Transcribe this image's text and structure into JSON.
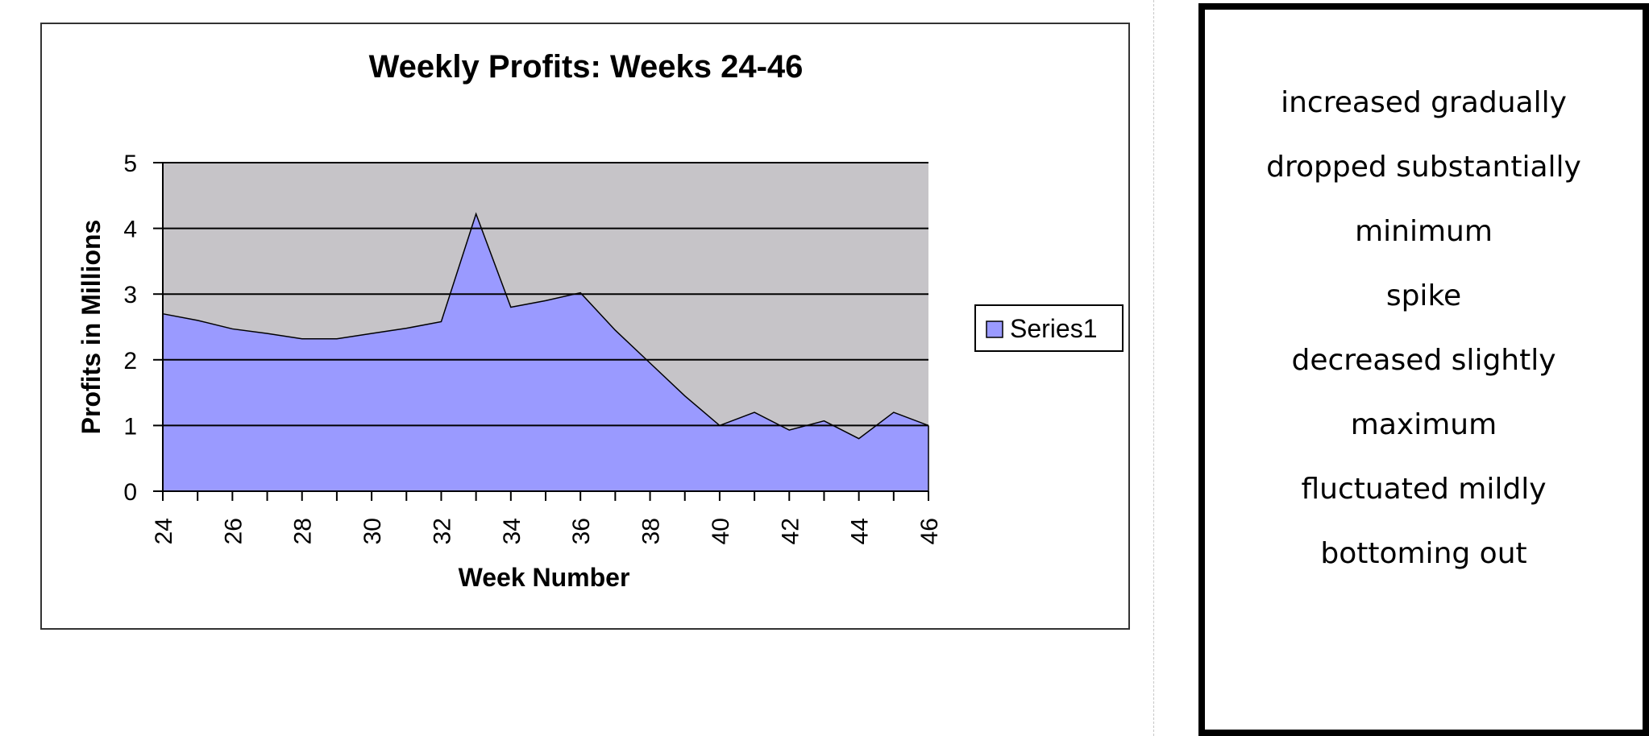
{
  "colors": {
    "plot_background": "#c6c4c8",
    "series_fill": "#9a9aff",
    "gridline": "#000000",
    "frame": "#333333"
  },
  "chart_data": {
    "type": "area",
    "title": "Weekly Profits: Weeks 24-46",
    "xlabel": "Week Number",
    "ylabel": "Profits in Millions",
    "x": [
      24,
      25,
      26,
      27,
      28,
      29,
      30,
      31,
      32,
      33,
      34,
      35,
      36,
      37,
      38,
      39,
      40,
      41,
      42,
      43,
      44,
      45,
      46
    ],
    "series": [
      {
        "name": "Series1",
        "values": [
          2.7,
          2.6,
          2.47,
          2.4,
          2.32,
          2.32,
          2.4,
          2.48,
          2.58,
          4.22,
          2.8,
          2.9,
          3.02,
          2.45,
          1.95,
          1.45,
          1.0,
          1.2,
          0.93,
          1.07,
          0.8,
          1.2,
          1.0
        ]
      }
    ],
    "xlim": [
      24,
      46
    ],
    "ylim": [
      0,
      5
    ],
    "x_tick_labels": [
      "24",
      "26",
      "28",
      "30",
      "32",
      "34",
      "36",
      "38",
      "40",
      "42",
      "44",
      "46"
    ],
    "y_tick_labels": [
      "0",
      "1",
      "2",
      "3",
      "4",
      "5"
    ],
    "grid": true,
    "legend_position": "right"
  },
  "word_bank": {
    "items": [
      "increased gradually",
      "dropped substantially",
      "minimum",
      "spike",
      "decreased slightly",
      "maximum",
      "fluctuated mildly",
      "bottoming out"
    ]
  }
}
